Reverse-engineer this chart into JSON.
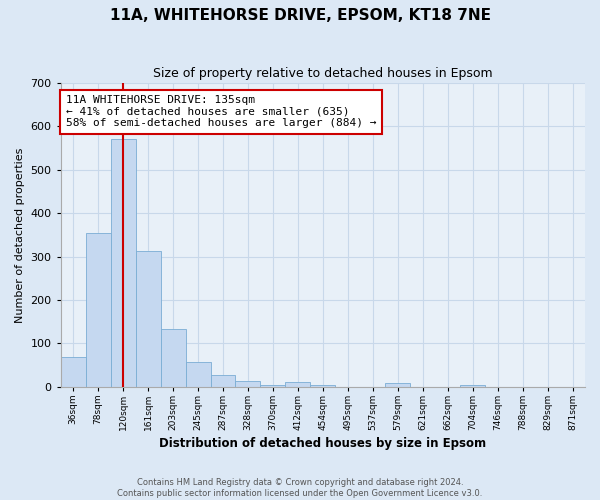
{
  "title": "11A, WHITEHORSE DRIVE, EPSOM, KT18 7NE",
  "subtitle": "Size of property relative to detached houses in Epsom",
  "xlabel": "Distribution of detached houses by size in Epsom",
  "ylabel": "Number of detached properties",
  "bar_labels": [
    "36sqm",
    "78sqm",
    "120sqm",
    "161sqm",
    "203sqm",
    "245sqm",
    "287sqm",
    "328sqm",
    "370sqm",
    "412sqm",
    "454sqm",
    "495sqm",
    "537sqm",
    "579sqm",
    "621sqm",
    "662sqm",
    "704sqm",
    "746sqm",
    "788sqm",
    "829sqm",
    "871sqm"
  ],
  "bar_values": [
    68,
    355,
    570,
    312,
    133,
    58,
    27,
    14,
    5,
    10,
    5,
    0,
    0,
    8,
    0,
    0,
    5,
    0,
    0,
    0,
    0
  ],
  "bar_color": "#c5d8f0",
  "bar_edge_color": "#7aadd4",
  "vline_x": 2,
  "vline_color": "#cc0000",
  "annotation_text": "11A WHITEHORSE DRIVE: 135sqm\n← 41% of detached houses are smaller (635)\n58% of semi-detached houses are larger (884) →",
  "annotation_box_color": "#ffffff",
  "annotation_box_edge": "#cc0000",
  "ylim": [
    0,
    700
  ],
  "yticks": [
    0,
    100,
    200,
    300,
    400,
    500,
    600,
    700
  ],
  "grid_color": "#c8d8ea",
  "background_color": "#dce8f5",
  "plot_bg_color": "#e8f0f8",
  "footer_line1": "Contains HM Land Registry data © Crown copyright and database right 2024.",
  "footer_line2": "Contains public sector information licensed under the Open Government Licence v3.0."
}
